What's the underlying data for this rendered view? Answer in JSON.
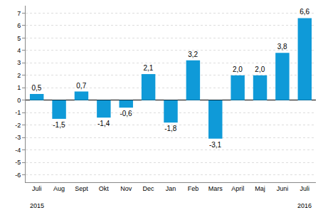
{
  "chart_data": {
    "type": "bar",
    "categories": [
      "Juli",
      "Aug",
      "Sept",
      "Okt",
      "Nov",
      "Dec",
      "Jan",
      "Feb",
      "Mars",
      "April",
      "Maj",
      "Juni",
      "Juli"
    ],
    "values": [
      0.5,
      -1.5,
      0.7,
      -1.4,
      -0.6,
      2.1,
      -1.8,
      3.2,
      -3.1,
      2.0,
      2.0,
      3.8,
      6.6
    ],
    "value_labels": [
      "0,5",
      "-1,5",
      "0,7",
      "-1,4",
      "-0,6",
      "2,1",
      "-1,8",
      "3,2",
      "-3,1",
      "2,0",
      "2,0",
      "3,8",
      "6,6"
    ],
    "color": "#0f9ad8",
    "ylim": [
      -6.6,
      7.6
    ],
    "yticks": [
      -6,
      -5,
      -4,
      -3,
      -2,
      -1,
      0,
      1,
      2,
      3,
      4,
      5,
      6,
      7
    ],
    "grid": true,
    "data_labels": true,
    "annotations": [
      {
        "text": "2015",
        "at": 0
      },
      {
        "text": "2016",
        "at": 12
      }
    ]
  }
}
